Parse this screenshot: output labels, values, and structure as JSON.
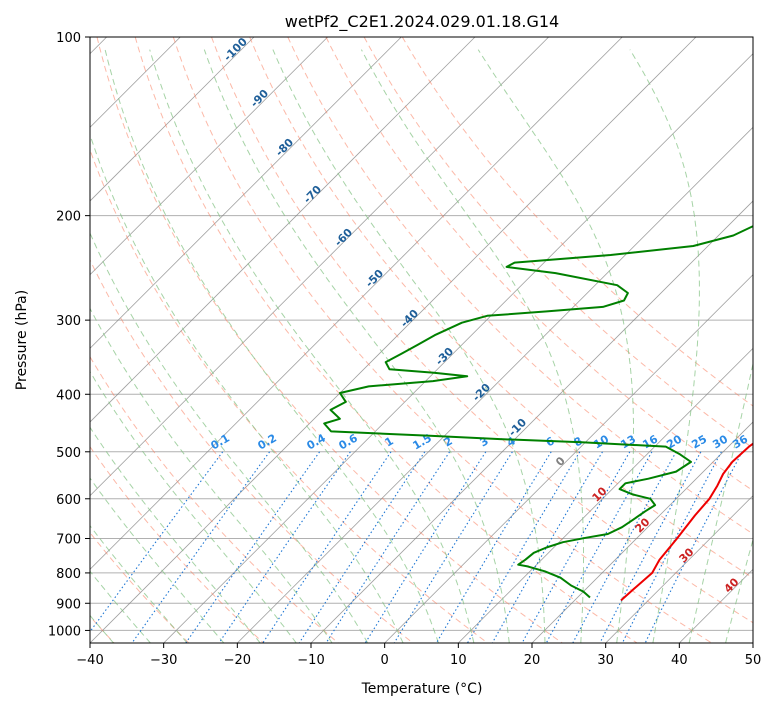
{
  "chart_data": {
    "type": "line",
    "title": "wetPf2_C2E1.2024.029.01.18.G14",
    "xlabel": "Temperature (°C)",
    "ylabel": "Pressure (hPa)",
    "xlim": [
      -40,
      50
    ],
    "ylim": [
      1050,
      100
    ],
    "y_scale": "log",
    "grid": true,
    "x_ticks": [
      "−40",
      "−30",
      "−20",
      "−10",
      "0",
      "10",
      "20",
      "30",
      "40",
      "50"
    ],
    "y_ticks": [
      "100",
      "200",
      "300",
      "400",
      "500",
      "600",
      "700",
      "800",
      "900",
      "1000"
    ],
    "colors": {
      "temperature": "#ee0000",
      "dewpoint": "#008000",
      "dry_adiabat": "#fa8060",
      "moist_adiabat": "#80c080",
      "mixing_ratio": "#1f77d4",
      "isotherm": "#808080",
      "dry_label": "#1f5f99",
      "moist_label": "#cc2222",
      "mixing_label": "#2a8ae6",
      "zero_label": "#808080"
    },
    "series": [
      {
        "key": "temperature",
        "points": [
          [
            26.3,
            890
          ],
          [
            26.5,
            850
          ],
          [
            26.8,
            800
          ],
          [
            26.0,
            760
          ],
          [
            25.5,
            700
          ],
          [
            24.8,
            640
          ],
          [
            24.5,
            600
          ],
          [
            23.8,
            570
          ],
          [
            23.0,
            545
          ],
          [
            22.6,
            520
          ],
          [
            22.8,
            490
          ],
          [
            23.5,
            465
          ],
          [
            23.3,
            450
          ],
          [
            22.8,
            425
          ],
          [
            21.5,
            410
          ],
          [
            20.5,
            395
          ],
          [
            19.8,
            380
          ],
          [
            19.0,
            365
          ],
          [
            18.0,
            350
          ],
          [
            17.0,
            335
          ],
          [
            15.8,
            320
          ],
          [
            14.3,
            305
          ],
          [
            13.0,
            290
          ],
          [
            11.0,
            270
          ],
          [
            9.3,
            250
          ],
          [
            7.5,
            230
          ],
          [
            5.5,
            210
          ],
          [
            3.5,
            190
          ],
          [
            2.0,
            175
          ],
          [
            1.2,
            160
          ],
          [
            1.0,
            150
          ],
          [
            0.6,
            140
          ],
          [
            -0.4,
            130
          ],
          [
            -1.0,
            120
          ],
          [
            -1.3,
            113
          ],
          [
            -2.0,
            107
          ],
          [
            -2.3,
            100
          ]
        ]
      },
      {
        "key": "dewpoint",
        "points": [
          [
            21.7,
            880
          ],
          [
            20.0,
            860
          ],
          [
            17.5,
            840
          ],
          [
            15.0,
            815
          ],
          [
            12.0,
            795
          ],
          [
            9.0,
            780
          ],
          [
            7.5,
            775
          ],
          [
            7.8,
            760
          ],
          [
            8.0,
            740
          ],
          [
            9.0,
            725
          ],
          [
            10.5,
            710
          ],
          [
            13.0,
            698
          ],
          [
            15.5,
            688
          ],
          [
            16.5,
            670
          ],
          [
            17.0,
            650
          ],
          [
            17.5,
            630
          ],
          [
            18.0,
            615
          ],
          [
            16.5,
            600
          ],
          [
            13.5,
            590
          ],
          [
            11.0,
            578
          ],
          [
            11.0,
            565
          ],
          [
            13.5,
            555
          ],
          [
            16.3,
            540
          ],
          [
            17.0,
            520
          ],
          [
            14.5,
            505
          ],
          [
            11.5,
            490
          ],
          [
            -0.5,
            482
          ],
          [
            -12.0,
            476
          ],
          [
            -22.0,
            470
          ],
          [
            -36.0,
            462
          ],
          [
            -38.0,
            448
          ],
          [
            -36.5,
            440
          ],
          [
            -39.0,
            425
          ],
          [
            -38.0,
            412
          ],
          [
            -40.0,
            398
          ],
          [
            -37.0,
            388
          ],
          [
            -29.0,
            380
          ],
          [
            -25.0,
            373
          ],
          [
            -30.0,
            368
          ],
          [
            -36.5,
            363
          ],
          [
            -38.0,
            353
          ],
          [
            -37.0,
            342
          ],
          [
            -36.0,
            330
          ],
          [
            -35.0,
            318
          ],
          [
            -33.0,
            303
          ],
          [
            -30.5,
            295
          ],
          [
            -23.0,
            290
          ],
          [
            -16.0,
            285
          ],
          [
            -14.0,
            278
          ],
          [
            -14.5,
            270
          ],
          [
            -17.0,
            262
          ],
          [
            -27.0,
            250
          ],
          [
            -34.5,
            244
          ],
          [
            -34.0,
            240
          ],
          [
            -22.0,
            233
          ],
          [
            -12.0,
            225
          ],
          [
            -8.0,
            216
          ],
          [
            -6.5,
            208
          ],
          [
            -5.5,
            196
          ],
          [
            -4.3,
            186
          ],
          [
            -3.0,
            177
          ],
          [
            -3.0,
            168
          ],
          [
            -4.5,
            158
          ],
          [
            -6.0,
            150
          ],
          [
            -6.0,
            142
          ],
          [
            -5.5,
            135
          ],
          [
            -4.0,
            128
          ],
          [
            -1.5,
            120
          ],
          [
            1.5,
            113
          ],
          [
            2.3,
            108
          ],
          [
            1.5,
            104
          ],
          [
            0.5,
            100
          ]
        ]
      }
    ],
    "isotherms": [
      -140,
      -130,
      -120,
      -110,
      -100,
      -90,
      -80,
      -70,
      -60,
      -50,
      -40,
      -30,
      -20,
      -10,
      0,
      10,
      20,
      30,
      40,
      50
    ],
    "dry_adiabats": [
      -120,
      -110,
      -100,
      -90,
      -80,
      -70,
      -60,
      -50,
      -40,
      -30,
      -20,
      -10,
      0,
      10,
      20,
      30,
      40,
      50,
      60,
      70,
      80,
      90,
      100
    ],
    "moist_adiabats": [
      -40,
      -35,
      -30,
      -25,
      -20,
      -15,
      -10,
      -5,
      0,
      5,
      10,
      15,
      20,
      25,
      30,
      35,
      40,
      45
    ],
    "mixing_ratios": [
      0.1,
      0.2,
      0.4,
      0.6,
      1,
      1.5,
      2,
      3,
      4,
      6,
      8,
      10,
      13,
      16,
      20,
      25,
      30,
      36
    ],
    "dry_labels": [
      "-100",
      "-90",
      "-80",
      "-70",
      "-60",
      "-50",
      "-40",
      "-30",
      "-20",
      "-10"
    ],
    "moist_labels": [
      "0",
      "10",
      "20",
      "30",
      "40"
    ],
    "mixing_labels": [
      "0.1",
      "0.2",
      "0.4",
      "0.6",
      "1",
      "1.5",
      "2",
      "3",
      "4",
      "6",
      "8",
      "10",
      "13",
      "16",
      "20",
      "25",
      "30",
      "36"
    ]
  }
}
